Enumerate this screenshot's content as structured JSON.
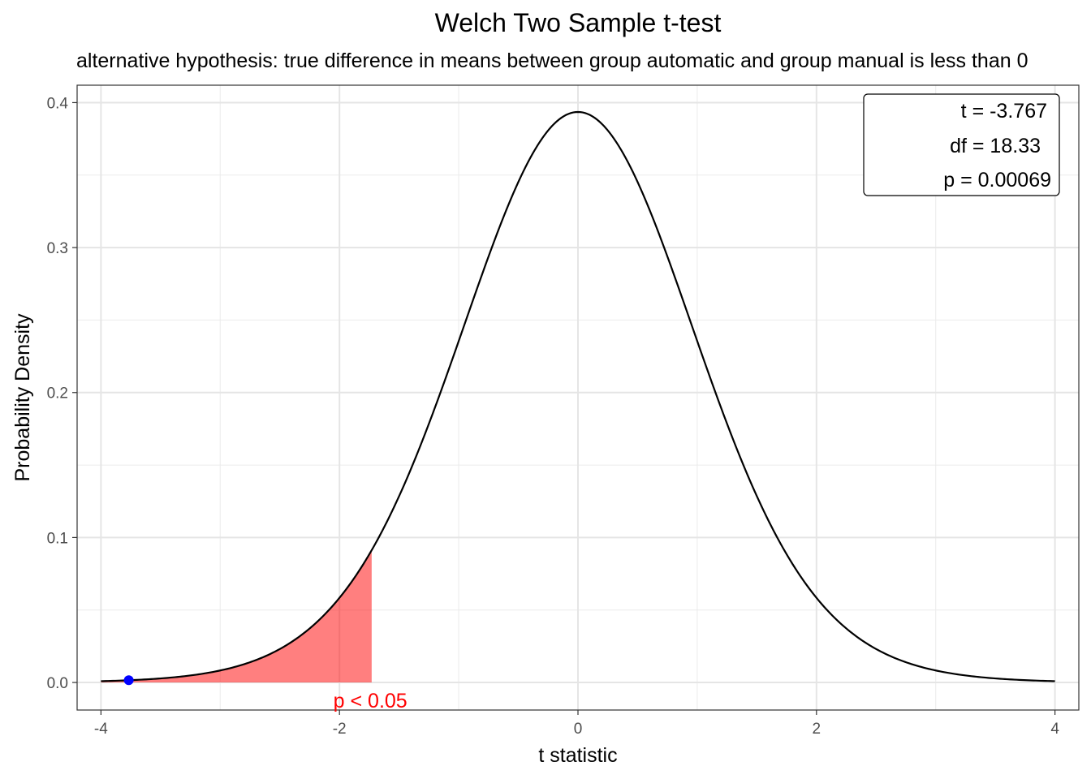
{
  "chart_data": {
    "type": "area",
    "title": "Welch Two Sample t-test",
    "subtitle": "alternative hypothesis: true difference in means between group automatic and group manual is less than 0",
    "xlabel": "t statistic",
    "ylabel": "Probability Density",
    "xlim": [
      -4.2,
      4.2
    ],
    "ylim": [
      -0.019,
      0.412
    ],
    "x_ticks": [
      -4,
      -2,
      0,
      2,
      4
    ],
    "x_tick_labels": [
      "-4",
      "-2",
      "0",
      "2",
      "4"
    ],
    "y_ticks": [
      0.0,
      0.1,
      0.2,
      0.3,
      0.4
    ],
    "y_tick_labels": [
      "0.0",
      "0.1",
      "0.2",
      "0.3",
      "0.4"
    ],
    "grid": true,
    "density_curve": {
      "distribution": "t",
      "df": 18.33,
      "x_range": [
        -4,
        4
      ],
      "color": "#000000"
    },
    "rejection_region": {
      "from": -4,
      "to": -1.73,
      "color": "#ff0000",
      "opacity": 0.5,
      "label": "p < 0.05",
      "label_x": -2.0
    },
    "observed_statistic": {
      "x": -3.767,
      "color": "#0000ff"
    },
    "stats_box": {
      "lines": [
        "t = -3.767",
        "df = 18.33",
        "p = 0.00069"
      ],
      "placement": "top-right"
    }
  }
}
